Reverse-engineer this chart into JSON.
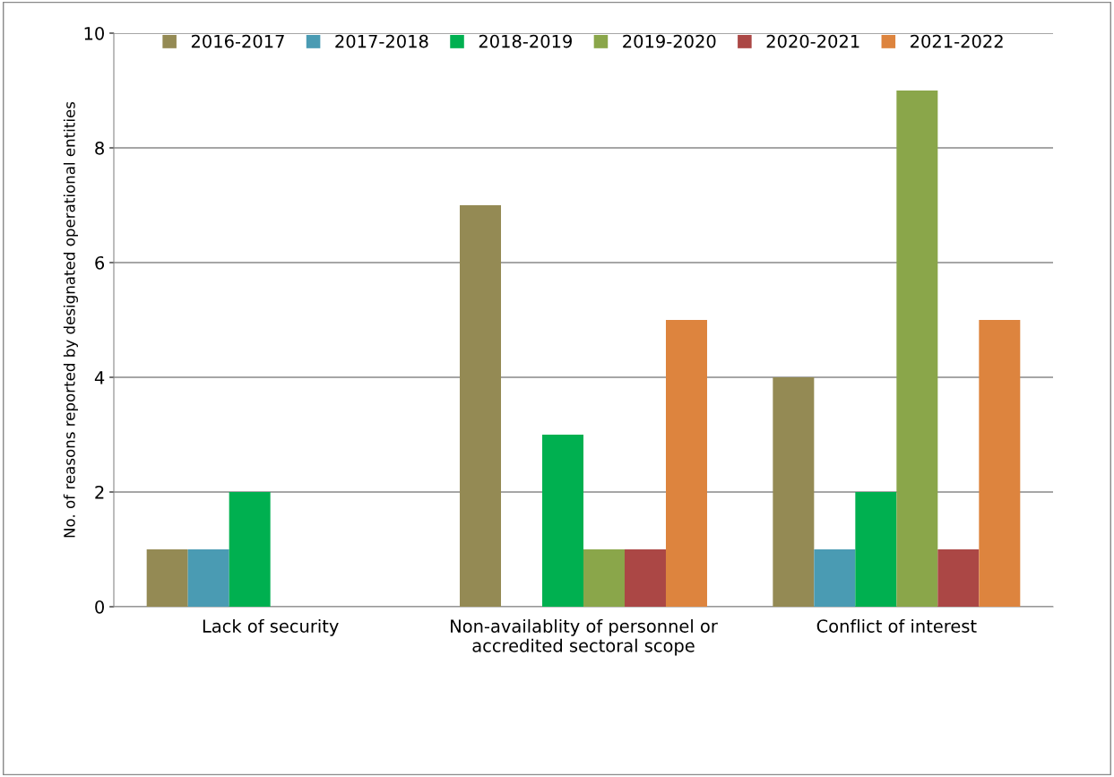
{
  "chart_data": {
    "type": "bar",
    "ylabel": "No. of reasons reported by designated operational entities",
    "categories": [
      "Lack of security",
      "Non-availablity of personnel or\naccredited sectoral scope",
      "Conflict of interest"
    ],
    "series": [
      {
        "name": "2016-2017",
        "color": "#948a54",
        "values": [
          1,
          7,
          4
        ]
      },
      {
        "name": "2017-2018",
        "color": "#4a9bb3",
        "values": [
          1,
          0,
          1
        ]
      },
      {
        "name": "2018-2019",
        "color": "#00b050",
        "values": [
          2,
          3,
          2
        ]
      },
      {
        "name": "2019-2020",
        "color": "#8aa64a",
        "values": [
          0,
          1,
          9
        ]
      },
      {
        "name": "2020-2021",
        "color": "#ab4745",
        "values": [
          0,
          1,
          1
        ]
      },
      {
        "name": "2021-2022",
        "color": "#dd843e",
        "values": [
          0,
          5,
          5
        ]
      }
    ],
    "ylim": [
      0,
      10
    ],
    "yticks": [
      0,
      2,
      4,
      6,
      8,
      10
    ],
    "grid": "y",
    "legend": "top"
  }
}
